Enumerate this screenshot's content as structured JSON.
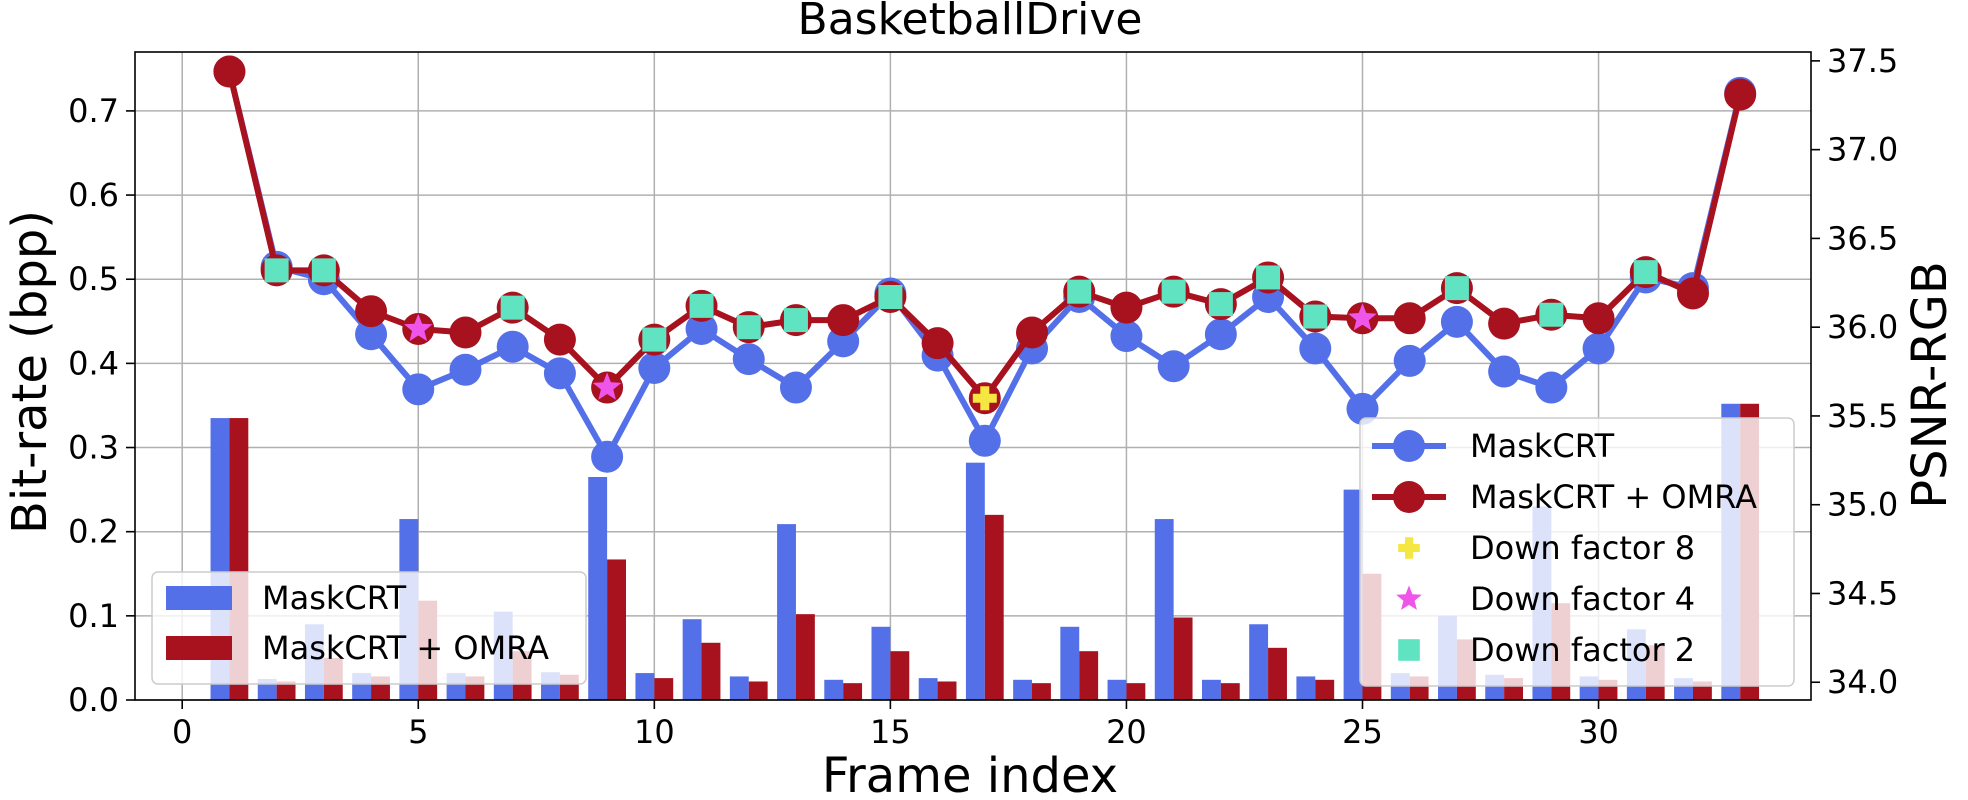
{
  "chart_data": {
    "type": "bar+line",
    "title": "BasketballDrive",
    "xlabel": "Frame index",
    "ylabel_left": "Bit-rate (bpp)",
    "ylabel_right": "PSNR-RGB",
    "xlim": [
      -1,
      34.5
    ],
    "ylim_left": [
      0,
      0.77
    ],
    "ylim_right": [
      33.9,
      37.55
    ],
    "x_ticks": [
      0,
      5,
      10,
      15,
      20,
      25,
      30
    ],
    "y_ticks_left": [
      "0.0",
      "0.1",
      "0.2",
      "0.3",
      "0.4",
      "0.5",
      "0.6",
      "0.7"
    ],
    "y_ticks_right": [
      "34.0",
      "34.5",
      "35.0",
      "35.5",
      "36.0",
      "36.5",
      "37.0",
      "37.5"
    ],
    "grid": true,
    "frames": [
      1,
      2,
      3,
      4,
      5,
      6,
      7,
      8,
      9,
      10,
      11,
      12,
      13,
      14,
      15,
      16,
      17,
      18,
      19,
      20,
      21,
      22,
      23,
      24,
      25,
      26,
      27,
      28,
      29,
      30,
      31,
      32,
      33
    ],
    "bar_series": [
      {
        "name": "MaskCRT",
        "color": "#5470e8",
        "values": [
          0.335,
          0.025,
          0.09,
          0.032,
          0.215,
          0.032,
          0.105,
          0.033,
          0.265,
          0.032,
          0.096,
          0.028,
          0.209,
          0.024,
          0.087,
          0.026,
          0.282,
          0.024,
          0.087,
          0.024,
          0.215,
          0.024,
          0.09,
          0.028,
          0.25,
          0.032,
          0.1,
          0.03,
          0.23,
          0.028,
          0.084,
          0.026,
          0.352
        ]
      },
      {
        "name": "MaskCRT + OMRA",
        "color": "#a8111e",
        "values": [
          0.335,
          0.022,
          0.05,
          0.028,
          0.118,
          0.028,
          0.058,
          0.03,
          0.167,
          0.026,
          0.068,
          0.022,
          0.102,
          0.02,
          0.058,
          0.022,
          0.22,
          0.02,
          0.058,
          0.02,
          0.098,
          0.02,
          0.062,
          0.024,
          0.15,
          0.028,
          0.072,
          0.026,
          0.115,
          0.024,
          0.065,
          0.022,
          0.352
        ]
      }
    ],
    "line_series": [
      {
        "name": "MaskCRT",
        "color": "#5470e8",
        "values": [
          37.44,
          36.34,
          36.27,
          35.96,
          35.65,
          35.76,
          35.89,
          35.74,
          35.27,
          35.77,
          35.99,
          35.82,
          35.66,
          35.92,
          36.19,
          35.84,
          35.36,
          35.88,
          36.17,
          35.95,
          35.78,
          35.96,
          36.17,
          35.88,
          35.54,
          35.81,
          36.03,
          35.75,
          35.66,
          35.88,
          36.28,
          36.22,
          37.32
        ]
      },
      {
        "name": "MaskCRT + OMRA",
        "color": "#a8111e",
        "values": [
          37.44,
          36.32,
          36.32,
          36.09,
          35.99,
          35.97,
          36.11,
          35.93,
          35.66,
          35.93,
          36.12,
          36.0,
          36.04,
          36.04,
          36.17,
          35.91,
          35.6,
          35.97,
          36.2,
          36.11,
          36.2,
          36.13,
          36.28,
          36.06,
          36.05,
          36.05,
          36.22,
          36.02,
          36.07,
          36.05,
          36.31,
          36.19,
          37.31
        ]
      }
    ],
    "down_factor_markers": [
      {
        "frame": 2,
        "factor": 2
      },
      {
        "frame": 3,
        "factor": 2
      },
      {
        "frame": 5,
        "factor": 4
      },
      {
        "frame": 7,
        "factor": 2
      },
      {
        "frame": 9,
        "factor": 4
      },
      {
        "frame": 10,
        "factor": 2
      },
      {
        "frame": 11,
        "factor": 2
      },
      {
        "frame": 12,
        "factor": 2
      },
      {
        "frame": 13,
        "factor": 2
      },
      {
        "frame": 15,
        "factor": 2
      },
      {
        "frame": 17,
        "factor": 8
      },
      {
        "frame": 19,
        "factor": 2
      },
      {
        "frame": 21,
        "factor": 2
      },
      {
        "frame": 22,
        "factor": 2
      },
      {
        "frame": 23,
        "factor": 2
      },
      {
        "frame": 24,
        "factor": 2
      },
      {
        "frame": 25,
        "factor": 4
      },
      {
        "frame": 27,
        "factor": 2
      },
      {
        "frame": 29,
        "factor": 2
      },
      {
        "frame": 31,
        "factor": 2
      }
    ],
    "marker_colors": {
      "8": "#f5e642",
      "4": "#ee55e8",
      "2": "#5fe3c0"
    },
    "legend_bars": {
      "position": "lower-left",
      "entries": [
        "MaskCRT",
        "MaskCRT + OMRA"
      ]
    },
    "legend_lines": {
      "position": "lower-right",
      "entries": [
        "MaskCRT",
        "MaskCRT + OMRA",
        "Down factor 8",
        "Down factor 4",
        "Down factor 2"
      ]
    }
  }
}
